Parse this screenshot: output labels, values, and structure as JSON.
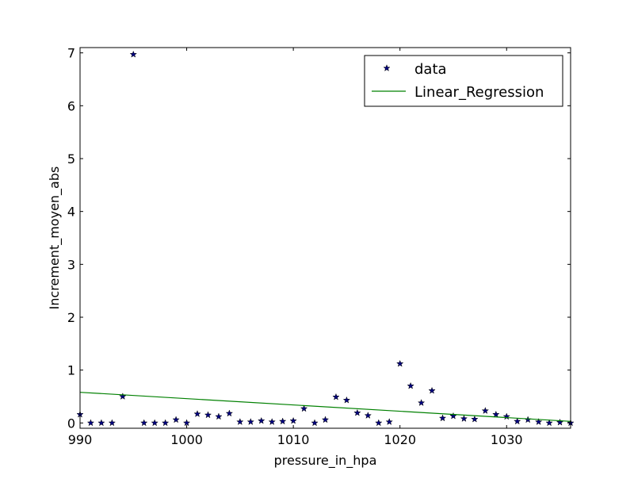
{
  "chart_data": {
    "type": "scatter",
    "xlabel": "pressure_in_hpa",
    "ylabel": "Increment_moyen_abs",
    "xlim": [
      990,
      1036
    ],
    "ylim": [
      -0.1,
      7.1
    ],
    "xticks": [
      990,
      1000,
      1010,
      1020,
      1030
    ],
    "yticks": [
      0,
      1,
      2,
      3,
      4,
      5,
      6,
      7
    ],
    "grid": false,
    "legend_position": "top-right",
    "series": [
      {
        "name": "data",
        "kind": "scatter",
        "marker": "star",
        "color": "#000080",
        "x": [
          990,
          991,
          992,
          993,
          994,
          995,
          996,
          997,
          998,
          999,
          1000,
          1001,
          1002,
          1003,
          1004,
          1005,
          1006,
          1007,
          1008,
          1009,
          1010,
          1011,
          1012,
          1013,
          1014,
          1015,
          1016,
          1017,
          1018,
          1019,
          1020,
          1021,
          1022,
          1023,
          1024,
          1025,
          1026,
          1027,
          1028,
          1029,
          1030,
          1031,
          1032,
          1033,
          1034,
          1035,
          1036
        ],
        "y": [
          0.16,
          0.0,
          0.0,
          0.0,
          0.5,
          6.97,
          0.0,
          0.0,
          0.0,
          0.06,
          0.0,
          0.17,
          0.15,
          0.12,
          0.18,
          0.02,
          0.02,
          0.04,
          0.02,
          0.03,
          0.04,
          0.27,
          0.0,
          0.06,
          0.49,
          0.43,
          0.19,
          0.14,
          0.0,
          0.02,
          1.12,
          0.7,
          0.38,
          0.61,
          0.09,
          0.13,
          0.08,
          0.07,
          0.23,
          0.16,
          0.12,
          0.03,
          0.06,
          0.02,
          0.0,
          0.01,
          0.0
        ]
      },
      {
        "name": "Linear_Regression",
        "kind": "line",
        "color": "#008000",
        "x": [
          990,
          1036
        ],
        "y": [
          0.58,
          0.03
        ]
      }
    ]
  }
}
